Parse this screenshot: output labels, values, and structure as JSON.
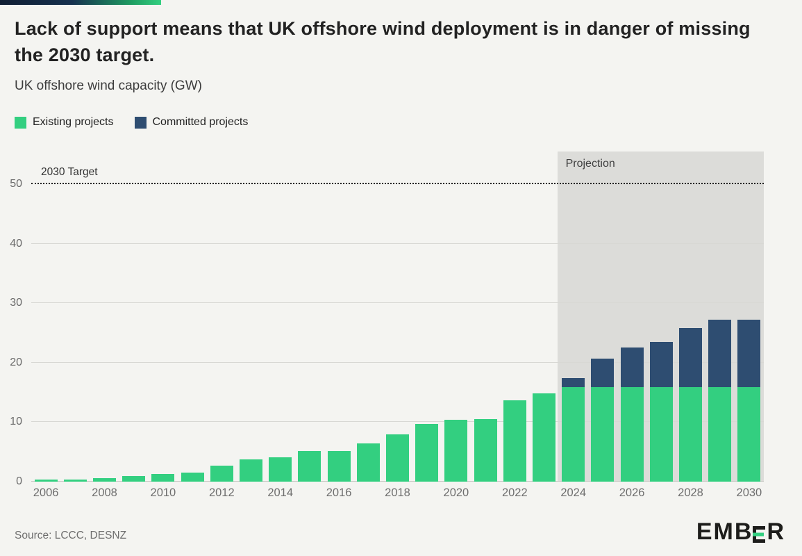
{
  "header": {
    "title": "Lack of support means that UK offshore wind deployment is in danger of missing the 2030 target.",
    "subtitle": "UK offshore wind capacity (GW)"
  },
  "legend": {
    "items": [
      {
        "label": "Existing projects",
        "color": "#33cf80"
      },
      {
        "label": "Committed projects",
        "color": "#2e4d71"
      }
    ]
  },
  "chart_data": {
    "type": "bar",
    "stacked": true,
    "title": "UK offshore wind capacity (GW)",
    "categories": [
      2006,
      2007,
      2008,
      2009,
      2010,
      2011,
      2012,
      2013,
      2014,
      2015,
      2016,
      2017,
      2018,
      2019,
      2020,
      2021,
      2022,
      2023,
      2024,
      2025,
      2026,
      2027,
      2028,
      2029,
      2030
    ],
    "series": [
      {
        "name": "Existing projects",
        "color": "#33cf80",
        "values": [
          0.3,
          0.4,
          0.6,
          0.9,
          1.3,
          1.5,
          2.7,
          3.7,
          4.1,
          5.1,
          5.1,
          6.4,
          7.9,
          9.7,
          10.4,
          10.5,
          13.7,
          14.8,
          15.9,
          15.9,
          15.9,
          15.9,
          15.9,
          15.9,
          15.9
        ]
      },
      {
        "name": "Committed projects",
        "color": "#2e4d71",
        "values": [
          0,
          0,
          0,
          0,
          0,
          0,
          0,
          0,
          0,
          0,
          0,
          0,
          0,
          0,
          0,
          0,
          0,
          0,
          1.5,
          4.8,
          6.7,
          7.6,
          9.9,
          11.3,
          11.3
        ]
      }
    ],
    "yticks": [
      0,
      10,
      20,
      30,
      40,
      50
    ],
    "ylim": [
      0,
      55.5
    ],
    "grid": true,
    "legend_position": "top-left",
    "target_line": {
      "value": 50,
      "label": "2030 Target",
      "color": "#222222"
    },
    "projection": {
      "label": "Projection",
      "start_year": 2024,
      "color": "#dcdcd9"
    }
  },
  "footer": {
    "source": "Source: LCCC, DESNZ",
    "logo": "EMBER"
  }
}
